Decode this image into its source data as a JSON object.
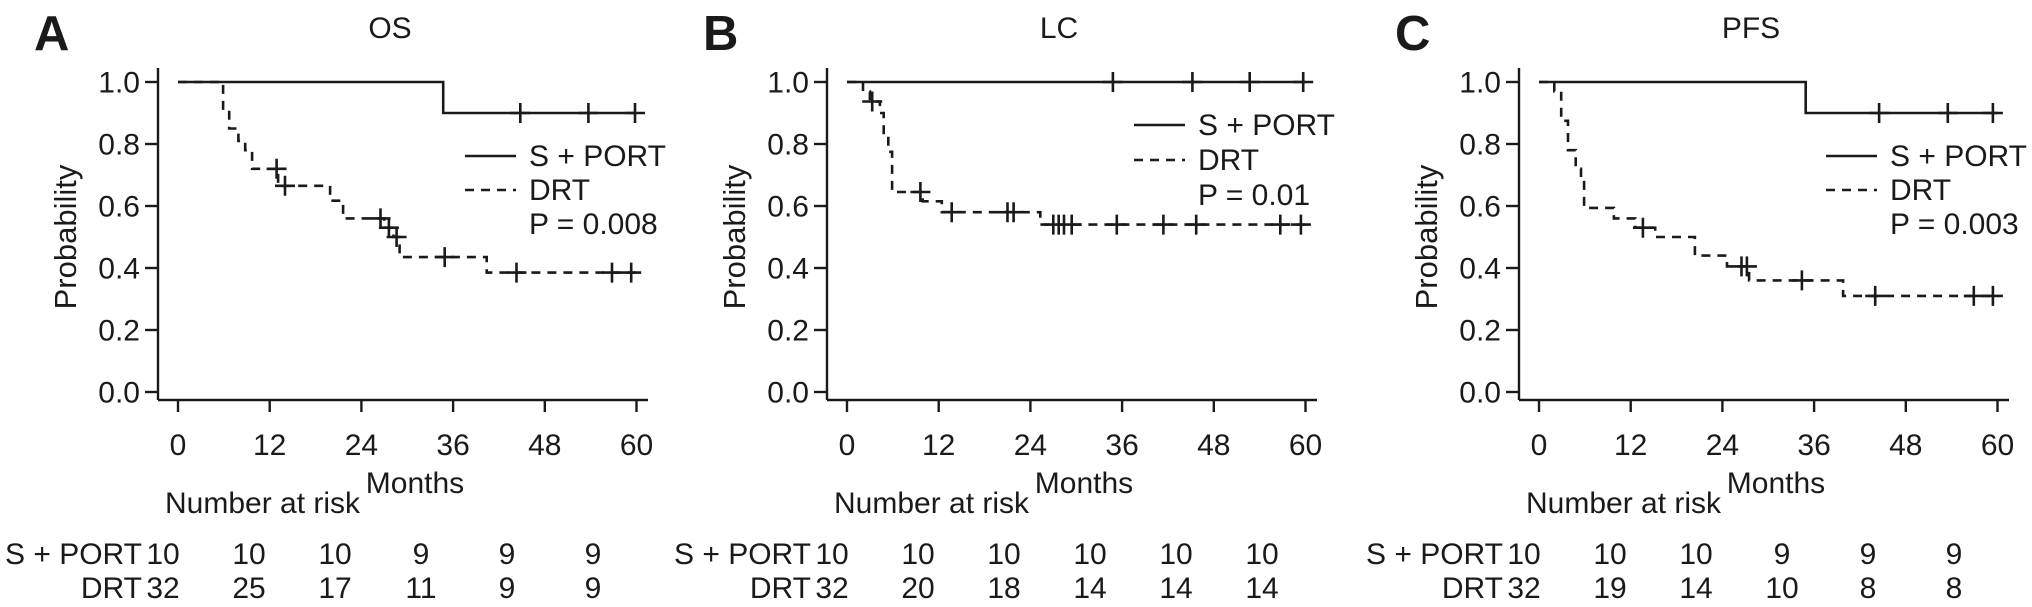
{
  "figure": {
    "ink_color": "#1a1a1a",
    "background_color": "#ffffff",
    "y_axis_label": "Probability",
    "x_axis_label": "Months",
    "risk_header": "Number at risk",
    "x_tick_values": [
      0,
      12,
      24,
      36,
      48,
      60
    ],
    "x_tick_labels": [
      "0",
      "12",
      "24",
      "36",
      "48",
      "60"
    ],
    "y_tick_values": [
      0.0,
      0.2,
      0.4,
      0.6,
      0.8,
      1.0
    ],
    "y_tick_labels": [
      "0.0",
      "0.2",
      "0.4",
      "0.6",
      "0.8",
      "1.0"
    ],
    "xlim": [
      0,
      60
    ],
    "ylim": [
      0.0,
      1.0
    ],
    "legend_entries": [
      "S + PORT",
      "DRT"
    ]
  },
  "chart_data": [
    {
      "type": "line",
      "panel_letter": "A",
      "title": "OS",
      "xlabel": "Months",
      "ylabel": "Probability",
      "p_value_label": "P = 0.008",
      "series": [
        {
          "name": "S + PORT",
          "line_style": "solid",
          "steps": [
            [
              0,
              1
            ],
            [
              34.7,
              1
            ],
            [
              34.7,
              0.9
            ],
            [
              60,
              0.9
            ]
          ],
          "censors": [
            [
              44.8,
              0.9
            ],
            [
              53.7,
              0.9
            ],
            [
              59.8,
              0.9
            ]
          ]
        },
        {
          "name": "DRT",
          "line_style": "dashed",
          "steps": [
            [
              0,
              1
            ],
            [
              5.9,
              1
            ],
            [
              5.9,
              0.91
            ],
            [
              6.7,
              0.91
            ],
            [
              6.7,
              0.85
            ],
            [
              7.9,
              0.85
            ],
            [
              7.9,
              0.81
            ],
            [
              8.8,
              0.81
            ],
            [
              8.8,
              0.78
            ],
            [
              9.7,
              0.78
            ],
            [
              9.7,
              0.72
            ],
            [
              13.1,
              0.72
            ],
            [
              13.1,
              0.665
            ],
            [
              19.9,
              0.665
            ],
            [
              19.9,
              0.617
            ],
            [
              21.6,
              0.617
            ],
            [
              21.6,
              0.56
            ],
            [
              27,
              0.56
            ],
            [
              27,
              0.53
            ],
            [
              28.2,
              0.53
            ],
            [
              28.2,
              0.5
            ],
            [
              29,
              0.5
            ],
            [
              29,
              0.435
            ],
            [
              40.4,
              0.435
            ],
            [
              40.4,
              0.385
            ],
            [
              60,
              0.385
            ]
          ],
          "censors": [
            [
              12.9,
              0.72
            ],
            [
              14,
              0.665
            ],
            [
              26.5,
              0.56
            ],
            [
              27.6,
              0.53
            ],
            [
              28.6,
              0.5
            ],
            [
              34.9,
              0.435
            ],
            [
              44.3,
              0.385
            ],
            [
              56.8,
              0.385
            ],
            [
              59.3,
              0.385
            ]
          ]
        }
      ],
      "number_at_risk": {
        "times": [
          0,
          12,
          24,
          36,
          48,
          60
        ],
        "rows": [
          {
            "label": "S + PORT",
            "values": [
              "10",
              "10",
              "10",
              "9",
              "9",
              "9"
            ]
          },
          {
            "label": "DRT",
            "values": [
              "32",
              "25",
              "17",
              "11",
              "9",
              "9"
            ]
          }
        ]
      }
    },
    {
      "type": "line",
      "panel_letter": "B",
      "title": "LC",
      "xlabel": "Months",
      "ylabel": "Probability",
      "p_value_label": "P = 0.01",
      "series": [
        {
          "name": "S + PORT",
          "line_style": "solid",
          "steps": [
            [
              0,
              1
            ],
            [
              60,
              1
            ]
          ],
          "censors": [
            [
              34.8,
              1
            ],
            [
              45.2,
              1
            ],
            [
              52.7,
              1
            ],
            [
              59.7,
              1
            ]
          ]
        },
        {
          "name": "DRT",
          "line_style": "dashed",
          "steps": [
            [
              0,
              1
            ],
            [
              2.1,
              1
            ],
            [
              2.1,
              0.969
            ],
            [
              3,
              0.969
            ],
            [
              3,
              0.937
            ],
            [
              4.3,
              0.937
            ],
            [
              4.3,
              0.9
            ],
            [
              4.8,
              0.9
            ],
            [
              4.8,
              0.825
            ],
            [
              5.4,
              0.825
            ],
            [
              5.4,
              0.775
            ],
            [
              5.9,
              0.775
            ],
            [
              5.9,
              0.645
            ],
            [
              9.9,
              0.645
            ],
            [
              9.9,
              0.615
            ],
            [
              12.4,
              0.615
            ],
            [
              12.4,
              0.58
            ],
            [
              25.3,
              0.58
            ],
            [
              25.3,
              0.54
            ],
            [
              60,
              0.54
            ]
          ],
          "censors": [
            [
              3.3,
              0.937
            ],
            [
              9.6,
              0.645
            ],
            [
              13.7,
              0.58
            ],
            [
              21,
              0.58
            ],
            [
              21.8,
              0.58
            ],
            [
              27,
              0.54
            ],
            [
              27.7,
              0.54
            ],
            [
              28.4,
              0.54
            ],
            [
              29.4,
              0.54
            ],
            [
              35.3,
              0.54
            ],
            [
              41.4,
              0.54
            ],
            [
              45.7,
              0.54
            ],
            [
              56.7,
              0.54
            ],
            [
              59.4,
              0.54
            ]
          ]
        }
      ],
      "number_at_risk": {
        "times": [
          0,
          12,
          24,
          36,
          48,
          60
        ],
        "rows": [
          {
            "label": "S + PORT",
            "values": [
              "10",
              "10",
              "10",
              "10",
              "10",
              "10"
            ]
          },
          {
            "label": "DRT",
            "values": [
              "32",
              "20",
              "18",
              "14",
              "14",
              "14"
            ]
          }
        ]
      }
    },
    {
      "type": "line",
      "panel_letter": "C",
      "title": "PFS",
      "xlabel": "Months",
      "ylabel": "Probability",
      "p_value_label": "P = 0.003",
      "series": [
        {
          "name": "S + PORT",
          "line_style": "solid",
          "steps": [
            [
              0,
              1
            ],
            [
              34.9,
              1
            ],
            [
              34.9,
              0.9
            ],
            [
              60,
              0.9
            ]
          ],
          "censors": [
            [
              44.5,
              0.9
            ],
            [
              53.5,
              0.9
            ],
            [
              59.4,
              0.9
            ]
          ]
        },
        {
          "name": "DRT",
          "line_style": "dashed",
          "steps": [
            [
              0,
              1
            ],
            [
              2,
              1
            ],
            [
              2,
              0.97
            ],
            [
              2.9,
              0.97
            ],
            [
              2.9,
              0.875
            ],
            [
              3.8,
              0.875
            ],
            [
              3.8,
              0.78
            ],
            [
              4.8,
              0.78
            ],
            [
              4.8,
              0.72
            ],
            [
              5.5,
              0.72
            ],
            [
              5.5,
              0.69
            ],
            [
              5.9,
              0.69
            ],
            [
              5.9,
              0.594
            ],
            [
              9.8,
              0.594
            ],
            [
              9.8,
              0.56
            ],
            [
              12.6,
              0.56
            ],
            [
              12.6,
              0.53
            ],
            [
              15.2,
              0.53
            ],
            [
              15.2,
              0.5
            ],
            [
              20.4,
              0.5
            ],
            [
              20.4,
              0.44
            ],
            [
              24.6,
              0.44
            ],
            [
              24.6,
              0.405
            ],
            [
              27.5,
              0.405
            ],
            [
              27.5,
              0.36
            ],
            [
              39.8,
              0.36
            ],
            [
              39.8,
              0.31
            ],
            [
              60,
              0.31
            ]
          ],
          "censors": [
            [
              13.6,
              0.53
            ],
            [
              26.5,
              0.405
            ],
            [
              27.2,
              0.405
            ],
            [
              34.4,
              0.36
            ],
            [
              44,
              0.31
            ],
            [
              56.9,
              0.31
            ],
            [
              59.4,
              0.31
            ]
          ]
        }
      ],
      "number_at_risk": {
        "times": [
          0,
          12,
          24,
          36,
          48,
          60
        ],
        "rows": [
          {
            "label": "S + PORT",
            "values": [
              "10",
              "10",
              "10",
              "9",
              "9",
              "9"
            ]
          },
          {
            "label": "DRT",
            "values": [
              "32",
              "19",
              "14",
              "10",
              "8",
              "8"
            ]
          }
        ]
      }
    }
  ]
}
